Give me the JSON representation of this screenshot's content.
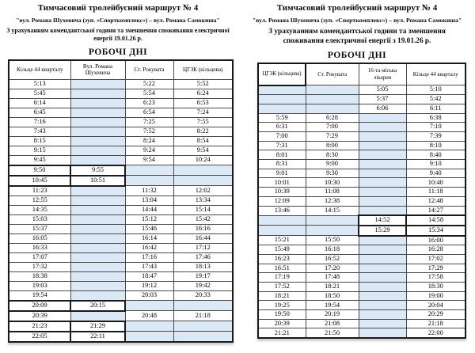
{
  "colors": {
    "cell_blue": "#dbe8f5",
    "grid_line": "#4a4a4a",
    "outer_border": "#1a1a1a",
    "text": "#000000"
  },
  "pages": {
    "left": {
      "title": "Тимчасовий тролейбусний маршрут № 4",
      "subtitle": "\"вул. Романа Шухевича (зуп. «Спорткомплекс») – вул. Романа Самокиша\"",
      "note": "З урахуванням комендантської години та зменшення споживання електричної енергії 19.01.26 р.",
      "section_label": "РОБОЧІ ДНІ",
      "columns": [
        "Кільце 44 кварталу",
        "Вул. Романа Шухевича",
        "Ст. Рокувата",
        "ЦГЗК (кільцева)"
      ],
      "rows": [
        [
          "5:13",
          "",
          "5:22",
          "5:52"
        ],
        [
          "5:45",
          "",
          "5:54",
          "6:24"
        ],
        [
          "6:14",
          "",
          "6:23",
          "6:53"
        ],
        [
          "6:45",
          "",
          "6:54",
          "7:24"
        ],
        [
          "7:16",
          "",
          "7:25",
          "7:55"
        ],
        [
          "7:43",
          "",
          "7:52",
          "8:22"
        ],
        [
          "8:15",
          "",
          "8:24",
          "8:54"
        ],
        [
          "9:15",
          "",
          "9:24",
          "9:54"
        ],
        [
          "9:45",
          "",
          "9:54",
          "10:24"
        ],
        [
          "9:50",
          "9:55",
          "",
          ""
        ],
        [
          "10:45",
          "10:51",
          "",
          ""
        ],
        [
          "11:23",
          "",
          "11:32",
          "12:02"
        ],
        [
          "12:55",
          "",
          "13:04",
          "13:34"
        ],
        [
          "14:35",
          "",
          "14:44",
          "15:14"
        ],
        [
          "15:03",
          "",
          "15:12",
          "15:42"
        ],
        [
          "15:37",
          "",
          "15:46",
          "16:16"
        ],
        [
          "16:05",
          "",
          "16:14",
          "16:44"
        ],
        [
          "16:33",
          "",
          "16:42",
          "17:12"
        ],
        [
          "17:07",
          "",
          "17:16",
          "17:46"
        ],
        [
          "17:32",
          "",
          "17:43",
          "18:13"
        ],
        [
          "18:38",
          "",
          "18:47",
          "19:17"
        ],
        [
          "19:03",
          "",
          "19:12",
          "19:42"
        ],
        [
          "19:54",
          "",
          "20:03",
          "20:33"
        ],
        [
          "20:09",
          "20:15",
          "",
          ""
        ],
        [
          "20:39",
          "",
          "20:48",
          "21:18"
        ],
        [
          "21:23",
          "21:29",
          "",
          ""
        ],
        [
          "22:05",
          "22:11",
          "",
          ""
        ]
      ],
      "heavy": [
        {
          "row": 9,
          "cells": [
            0,
            1
          ]
        },
        {
          "row": 10,
          "cells": [
            0,
            1
          ]
        },
        {
          "row": 23,
          "cells": [
            0,
            1
          ]
        },
        {
          "row": 25,
          "cells": [
            0,
            1
          ]
        },
        {
          "row": 26,
          "cells": [
            0,
            1
          ]
        }
      ]
    },
    "right": {
      "title": "Тимчасовий тролейбусний маршрут № 4",
      "subtitle": "\"вул. Романа Шухевича (зуп. «Спорткомплекс») – вул. Романа Самокиша\"",
      "note": "З урахуванням комендантської години та зменшення споживання електричної енергії з 19.01.26 р.",
      "section_label": "РОБОЧІ ДНІ",
      "columns": [
        "ЦГЗК (кільцева)",
        "Ст. Рокувата",
        "16-та міська лікарня",
        "Кільце 44 кварталу"
      ],
      "rows": [
        [
          "",
          "",
          "5:05",
          "5:10"
        ],
        [
          "",
          "",
          "5:37",
          "5:42"
        ],
        [
          "",
          "",
          "6:06",
          "6:11"
        ],
        [
          "5:59",
          "6:28",
          "",
          "6:38"
        ],
        [
          "6:31",
          "7:00",
          "",
          "7:10"
        ],
        [
          "7:00",
          "7:29",
          "",
          "7:39"
        ],
        [
          "7:31",
          "8:00",
          "",
          "8:10"
        ],
        [
          "8:01",
          "8:30",
          "",
          "8:40"
        ],
        [
          "8:31",
          "9:00",
          "",
          "9:10"
        ],
        [
          "9:01",
          "9:30",
          "",
          "9:40"
        ],
        [
          "10:01",
          "10:30",
          "",
          "10:40"
        ],
        [
          "10:39",
          "11:08",
          "",
          "11:18"
        ],
        [
          "12:09",
          "12:38",
          "",
          "12:48"
        ],
        [
          "13:46",
          "14:15",
          "",
          "14:27"
        ],
        [
          "",
          "",
          "14:52",
          "14:58"
        ],
        [
          "",
          "",
          "15:29",
          "15:34"
        ],
        [
          "15:21",
          "15:50",
          "",
          "16:00"
        ],
        [
          "15:49",
          "16:18",
          "",
          "16:28"
        ],
        [
          "16:23",
          "16:52",
          "",
          "17:02"
        ],
        [
          "16:51",
          "17:20",
          "",
          "17:29"
        ],
        [
          "17:19",
          "17:48",
          "",
          "17:58"
        ],
        [
          "17:52",
          "18:21",
          "",
          "18:30"
        ],
        [
          "18:21",
          "18:50",
          "",
          "19:00"
        ],
        [
          "19:25",
          "19:54",
          "",
          "20:04"
        ],
        [
          "19:50",
          "20:19",
          "",
          "20:29"
        ],
        [
          "20:39",
          "21:08",
          "",
          "21:18"
        ],
        [
          "21:21",
          "21:50",
          "",
          "22:00"
        ]
      ],
      "heavy": [
        {
          "row": 14,
          "cells": [
            2,
            3
          ]
        },
        {
          "row": 15,
          "cells": [
            2,
            3
          ]
        }
      ]
    }
  }
}
